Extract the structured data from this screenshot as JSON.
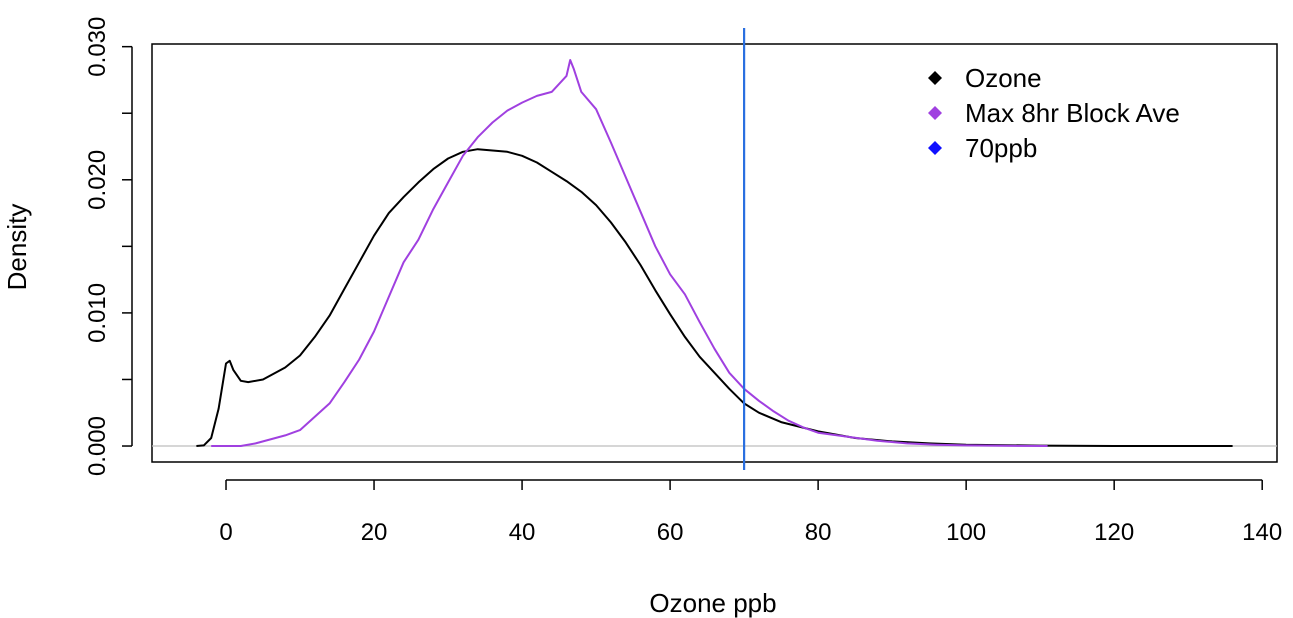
{
  "chart_data": {
    "type": "line",
    "title": "",
    "xlabel": "Ozone ppb",
    "ylabel": "Density",
    "xlim": [
      -10,
      142
    ],
    "ylim": [
      -0.0012,
      0.0302
    ],
    "x_ticks": [
      0,
      20,
      40,
      60,
      80,
      100,
      120,
      140
    ],
    "x_tick_labels": [
      "0",
      "20",
      "40",
      "60",
      "80",
      "100",
      "120",
      "140"
    ],
    "y_ticks": [
      0,
      0.005,
      0.01,
      0.015,
      0.02,
      0.025,
      0.03
    ],
    "y_tick_labels": [
      "0.000",
      "",
      "0.010",
      "",
      "0.020",
      "",
      "0.030"
    ],
    "baseline": 0,
    "grid": false,
    "legend_position": "top-right",
    "legend": [
      {
        "label": "Ozone",
        "color": "#000000"
      },
      {
        "label": "Max 8hr Block Ave",
        "color": "#a040e0"
      },
      {
        "label": "70ppb",
        "color": "#1010ff"
      }
    ],
    "vline": {
      "x": 70,
      "color": "#2a6fe0"
    },
    "series": [
      {
        "name": "Ozone",
        "color": "#000000",
        "points": [
          [
            -4,
            0
          ],
          [
            -3,
            5e-05
          ],
          [
            -2,
            0.0006
          ],
          [
            -1,
            0.0028
          ],
          [
            0,
            0.0062
          ],
          [
            0.5,
            0.0064
          ],
          [
            1,
            0.0057
          ],
          [
            2,
            0.0049
          ],
          [
            3,
            0.0048
          ],
          [
            5,
            0.005
          ],
          [
            8,
            0.0059
          ],
          [
            10,
            0.0068
          ],
          [
            12,
            0.0082
          ],
          [
            14,
            0.0098
          ],
          [
            16,
            0.0118
          ],
          [
            18,
            0.0138
          ],
          [
            20,
            0.0158
          ],
          [
            22,
            0.0175
          ],
          [
            24,
            0.0187
          ],
          [
            26,
            0.0198
          ],
          [
            28,
            0.0208
          ],
          [
            30,
            0.0216
          ],
          [
            32,
            0.0221
          ],
          [
            34,
            0.0223
          ],
          [
            36,
            0.0222
          ],
          [
            38,
            0.0221
          ],
          [
            40,
            0.0218
          ],
          [
            42,
            0.0213
          ],
          [
            44,
            0.0206
          ],
          [
            46,
            0.0199
          ],
          [
            48,
            0.0191
          ],
          [
            50,
            0.0181
          ],
          [
            52,
            0.0168
          ],
          [
            54,
            0.0153
          ],
          [
            56,
            0.0136
          ],
          [
            58,
            0.0117
          ],
          [
            60,
            0.0099
          ],
          [
            62,
            0.0082
          ],
          [
            64,
            0.0067
          ],
          [
            66,
            0.0055
          ],
          [
            68,
            0.0043
          ],
          [
            70,
            0.0032
          ],
          [
            72,
            0.0025
          ],
          [
            75,
            0.0018
          ],
          [
            80,
            0.0011
          ],
          [
            85,
            0.0006
          ],
          [
            90,
            0.00035
          ],
          [
            95,
            0.0002
          ],
          [
            100,
            0.0001
          ],
          [
            110,
            3e-05
          ],
          [
            120,
            0
          ],
          [
            136,
            0
          ]
        ]
      },
      {
        "name": "Max 8hr Block Ave",
        "color": "#a040e0",
        "points": [
          [
            -2,
            0
          ],
          [
            0,
            0
          ],
          [
            2,
            0
          ],
          [
            4,
            0.0002
          ],
          [
            6,
            0.0005
          ],
          [
            8,
            0.0008
          ],
          [
            10,
            0.0012
          ],
          [
            12,
            0.0022
          ],
          [
            14,
            0.0032
          ],
          [
            16,
            0.0048
          ],
          [
            18,
            0.0065
          ],
          [
            20,
            0.0086
          ],
          [
            22,
            0.0112
          ],
          [
            24,
            0.0138
          ],
          [
            26,
            0.0155
          ],
          [
            28,
            0.0178
          ],
          [
            30,
            0.0198
          ],
          [
            32,
            0.0218
          ],
          [
            34,
            0.0232
          ],
          [
            36,
            0.0243
          ],
          [
            38,
            0.0252
          ],
          [
            40,
            0.0258
          ],
          [
            42,
            0.0263
          ],
          [
            44,
            0.0266
          ],
          [
            46,
            0.0278
          ],
          [
            46.5,
            0.029
          ],
          [
            47,
            0.0283
          ],
          [
            48,
            0.0266
          ],
          [
            50,
            0.0253
          ],
          [
            52,
            0.0228
          ],
          [
            54,
            0.0202
          ],
          [
            56,
            0.0176
          ],
          [
            58,
            0.015
          ],
          [
            60,
            0.0129
          ],
          [
            62,
            0.0114
          ],
          [
            64,
            0.0093
          ],
          [
            66,
            0.0073
          ],
          [
            68,
            0.0055
          ],
          [
            70,
            0.0043
          ],
          [
            72,
            0.0034
          ],
          [
            74,
            0.0026
          ],
          [
            76,
            0.0019
          ],
          [
            78,
            0.0014
          ],
          [
            80,
            0.001
          ],
          [
            84,
            0.0007
          ],
          [
            88,
            0.0004
          ],
          [
            92,
            0.0002
          ],
          [
            96,
            0.0001
          ],
          [
            100,
            5e-05
          ],
          [
            105,
            2e-05
          ],
          [
            111,
            0
          ]
        ]
      }
    ]
  }
}
